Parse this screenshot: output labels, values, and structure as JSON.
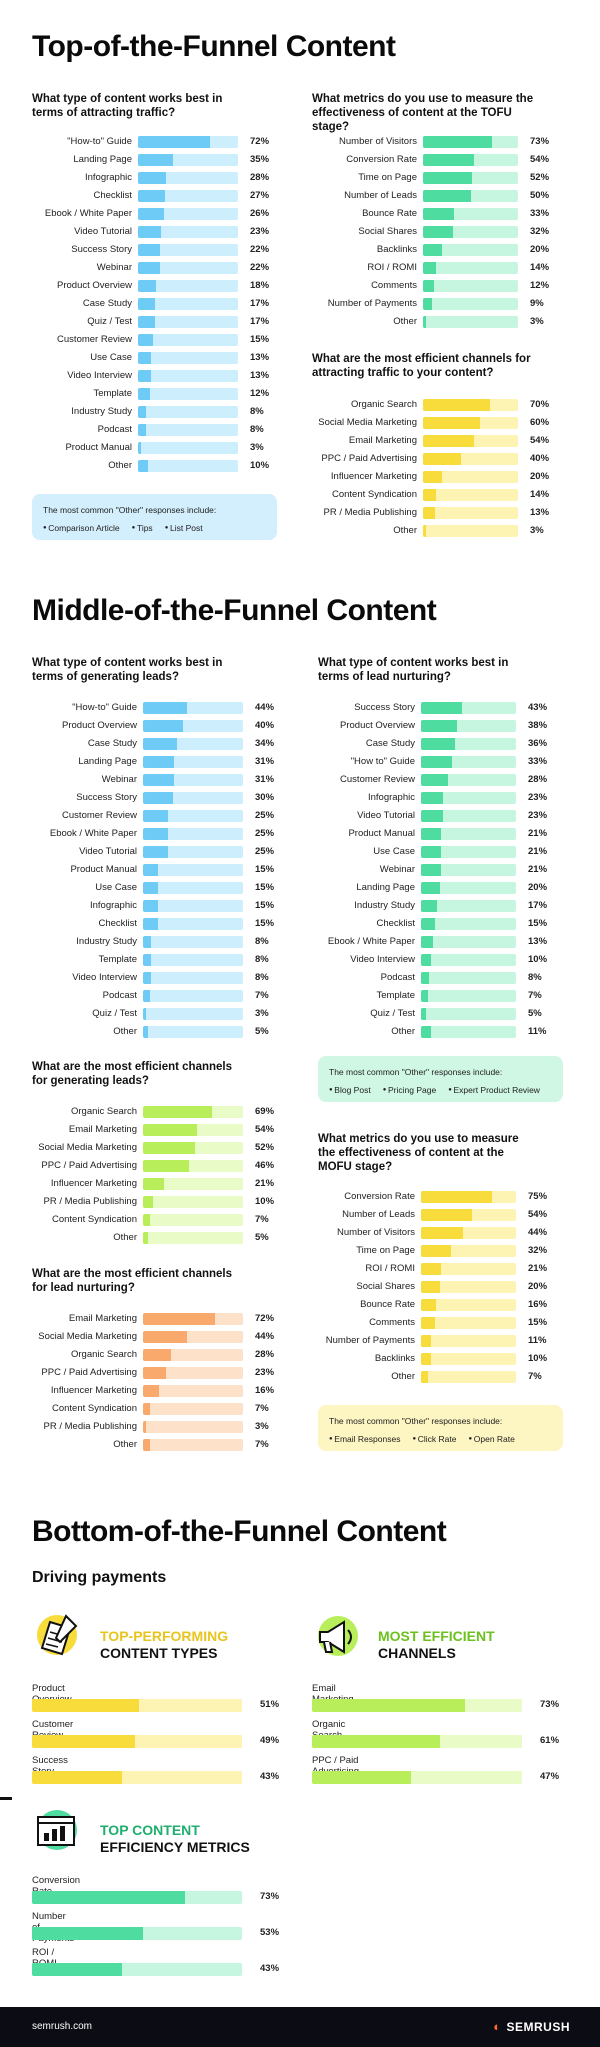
{
  "colors": {
    "blue": {
      "fill": "#6ecbf5",
      "track": "#cdeefd"
    },
    "green": {
      "fill": "#4fdca0",
      "track": "#c6f6e0"
    },
    "yellow": {
      "fill": "#f7dc3c",
      "track": "#fdf3b2"
    },
    "lime": {
      "fill": "#b8ee5a",
      "track": "#e9fbc6"
    },
    "orange": {
      "fill": "#f9a96b",
      "track": "#fde1c9"
    },
    "bluenote": "#d3eefc",
    "greennote": "#cff7e4",
    "yellownote": "#fdf5c2"
  },
  "sections": {
    "tofu": "Top-of-the-Funnel Content",
    "mofu": "Middle-of-the-Funnel Content",
    "bofu": "Bottom-of-the-Funnel Content",
    "bofu_sub": "Driving payments"
  },
  "notes": {
    "tofu": {
      "title": "The most common \"Other\" responses include:",
      "items": [
        "Comparison Article",
        "Tips",
        "List Post"
      ]
    },
    "mofu": {
      "title": "The most common \"Other\" responses include:",
      "items": [
        "Blog Post",
        "Pricing Page",
        "Expert Product Review"
      ]
    },
    "mofu2": {
      "title": "The most common \"Other\" responses include:",
      "items": [
        "Email Responses",
        "Click Rate",
        "Open Rate"
      ]
    }
  },
  "bofu_heads": {
    "types": [
      "TOP-PERFORMING",
      "CONTENT TYPES"
    ],
    "channels": [
      "MOST EFFICIENT",
      "CHANNELS"
    ],
    "metrics": [
      "TOP CONTENT",
      "EFFICIENCY METRICS"
    ]
  },
  "footer": {
    "site": "semrush.com",
    "brand": "SEMRUSH"
  },
  "chart_data": [
    {
      "id": "c1",
      "type": "bar",
      "title": "What type of content works best in terms of attracting traffic?",
      "color": "blue",
      "categories": [
        "\"How-to\" Guide",
        "Landing Page",
        "Infographic",
        "Checklist",
        "Ebook / White Paper",
        "Video Tutorial",
        "Success Story",
        "Webinar",
        "Product Overview",
        "Case Study",
        "Quiz / Test",
        "Customer Review",
        "Use Case",
        "Video Interview",
        "Template",
        "Industry Study",
        "Podcast",
        "Product Manual",
        "Other"
      ],
      "values": [
        72,
        35,
        28,
        27,
        26,
        23,
        22,
        22,
        18,
        17,
        17,
        15,
        13,
        13,
        12,
        8,
        8,
        3,
        10
      ],
      "unit": "%",
      "xlim": [
        0,
        100
      ]
    },
    {
      "id": "c2",
      "type": "bar",
      "title": "What metrics do you use to measure the effectiveness of content at the TOFU stage?",
      "color": "green",
      "categories": [
        "Number of Visitors",
        "Conversion Rate",
        "Time on Page",
        "Number of Leads",
        "Bounce Rate",
        "Social Shares",
        "Backlinks",
        "ROI / ROMI",
        "Comments",
        "Number of Payments",
        "Other"
      ],
      "values": [
        73,
        54,
        52,
        50,
        33,
        32,
        20,
        14,
        12,
        9,
        3
      ],
      "unit": "%",
      "xlim": [
        0,
        100
      ]
    },
    {
      "id": "c3",
      "type": "bar",
      "title": "What are the most efficient channels for attracting traffic to your content?",
      "color": "yellow",
      "categories": [
        "Organic Search",
        "Social Media Marketing",
        "Email Marketing",
        "PPC / Paid Advertising",
        "Influencer Marketing",
        "Content Syndication",
        "PR / Media Publishing",
        "Other"
      ],
      "values": [
        70,
        60,
        54,
        40,
        20,
        14,
        13,
        3
      ],
      "unit": "%",
      "xlim": [
        0,
        100
      ]
    },
    {
      "id": "c4",
      "type": "bar",
      "title": "What type of content works best in terms of generating leads?",
      "color": "blue",
      "categories": [
        "\"How-to\" Guide",
        "Product Overview",
        "Case Study",
        "Landing Page",
        "Webinar",
        "Success Story",
        "Customer Review",
        "Ebook / White Paper",
        "Video Tutorial",
        "Product Manual",
        "Use Case",
        "Infographic",
        "Checklist",
        "Industry Study",
        "Template",
        "Video Interview",
        "Podcast",
        "Quiz / Test",
        "Other"
      ],
      "values": [
        44,
        40,
        34,
        31,
        31,
        30,
        25,
        25,
        25,
        15,
        15,
        15,
        15,
        8,
        8,
        8,
        7,
        3,
        5
      ],
      "unit": "%",
      "xlim": [
        0,
        100
      ]
    },
    {
      "id": "c5",
      "type": "bar",
      "title": "What type of content works best in terms of lead nurturing?",
      "color": "green",
      "categories": [
        "Success Story",
        "Product Overview",
        "Case Study",
        "\"How to\" Guide",
        "Customer Review",
        "Infographic",
        "Video Tutorial",
        "Product Manual",
        "Use Case",
        "Webinar",
        "Landing Page",
        "Industry Study",
        "Checklist",
        "Ebook / White Paper",
        "Video Interview",
        "Podcast",
        "Template",
        "Quiz / Test",
        "Other"
      ],
      "values": [
        43,
        38,
        36,
        33,
        28,
        23,
        23,
        21,
        21,
        21,
        20,
        17,
        15,
        13,
        10,
        8,
        7,
        5,
        11
      ],
      "unit": "%",
      "xlim": [
        0,
        100
      ]
    },
    {
      "id": "c6",
      "type": "bar",
      "title": "What are the most efficient channels for generating leads?",
      "color": "lime",
      "categories": [
        "Organic Search",
        "Email Marketing",
        "Social Media Marketing",
        "PPC / Paid Advertising",
        "Influencer Marketing",
        "PR / Media Publishing",
        "Content Syndication",
        "Other"
      ],
      "values": [
        69,
        54,
        52,
        46,
        21,
        10,
        7,
        5
      ],
      "unit": "%",
      "xlim": [
        0,
        100
      ]
    },
    {
      "id": "c7",
      "type": "bar",
      "title": "What metrics do you use to measure the effectiveness of content at the MOFU stage?",
      "color": "yellow",
      "categories": [
        "Conversion Rate",
        "Number of Leads",
        "Number of Visitors",
        "Time on Page",
        "ROI / ROMI",
        "Social Shares",
        "Bounce Rate",
        "Comments",
        "Number of Payments",
        "Backlinks",
        "Other"
      ],
      "values": [
        75,
        54,
        44,
        32,
        21,
        20,
        16,
        15,
        11,
        10,
        7
      ],
      "unit": "%",
      "xlim": [
        0,
        100
      ]
    },
    {
      "id": "c8",
      "type": "bar",
      "title": "What are the most efficient channels for lead nurturing?",
      "color": "orange",
      "categories": [
        "Email Marketing",
        "Social Media Marketing",
        "Organic Search",
        "PPC / Paid Advertising",
        "Influencer Marketing",
        "Content Syndication",
        "PR / Media Publishing",
        "Other"
      ],
      "values": [
        72,
        44,
        28,
        23,
        16,
        7,
        3,
        7
      ],
      "unit": "%",
      "xlim": [
        0,
        100
      ]
    },
    {
      "id": "c9",
      "type": "bar",
      "title": "Top-performing content types",
      "color": "yellow",
      "categories": [
        "Product Overview",
        "Customer Review",
        "Success Story"
      ],
      "values": [
        51,
        49,
        43
      ],
      "unit": "%",
      "xlim": [
        0,
        100
      ]
    },
    {
      "id": "c10",
      "type": "bar",
      "title": "Most efficient channels",
      "color": "lime",
      "categories": [
        "Email Marketing",
        "Organic Search",
        "PPC / Paid Advertising"
      ],
      "values": [
        73,
        61,
        47
      ],
      "unit": "%",
      "xlim": [
        0,
        100
      ]
    },
    {
      "id": "c11",
      "type": "bar",
      "title": "Top content efficiency metrics",
      "color": "green",
      "categories": [
        "Conversion Rate",
        "Number of Payments",
        "ROI / ROMI"
      ],
      "values": [
        73,
        53,
        43
      ],
      "unit": "%",
      "xlim": [
        0,
        100
      ]
    }
  ]
}
